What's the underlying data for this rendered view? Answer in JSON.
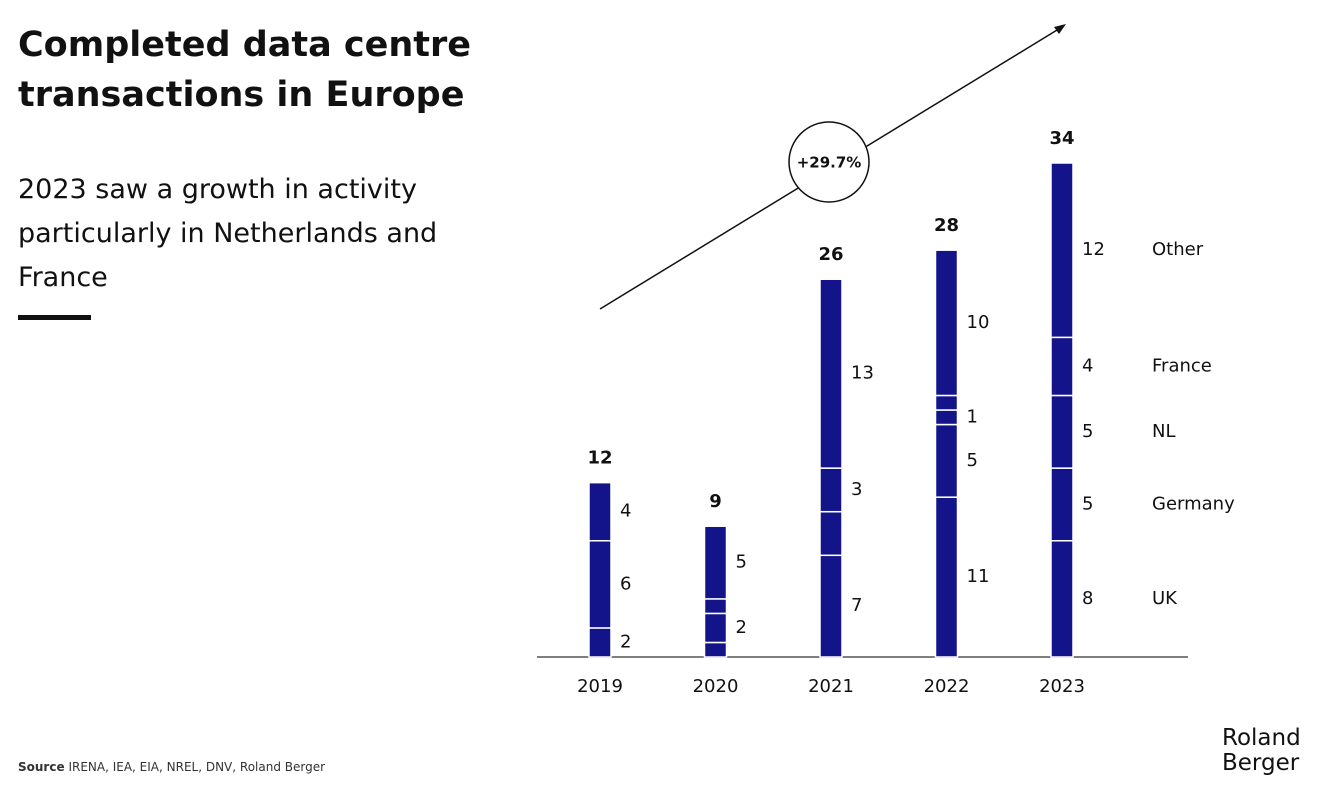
{
  "chart_data": {
    "type": "stacked_bar",
    "title": "Completed data centre transactions in Europe",
    "subtitle": "2023 saw a growth in activity particularly in Netherlands and France",
    "annotation": "+29.7%",
    "source_label": "Source",
    "source": "IRENA, IEA, EIA, NREL, DNV, Roland Berger",
    "brand": "Roland Berger",
    "categories": [
      "2019",
      "2020",
      "2021",
      "2022",
      "2023"
    ],
    "totals": [
      12,
      9,
      26,
      28,
      34
    ],
    "series": [
      {
        "name": "UK",
        "color": "#14148a",
        "values": [
          2,
          1,
          7,
          11,
          8
        ],
        "value_labels": [
          "2",
          null,
          "7",
          "11",
          "8"
        ]
      },
      {
        "name": "Germany",
        "color": "#14148a",
        "values": [
          6,
          2,
          3,
          5,
          5
        ],
        "value_labels": [
          "6",
          "2",
          null,
          "5",
          "5"
        ]
      },
      {
        "name": "NL",
        "color": "#14148a",
        "values": [
          null,
          1,
          3,
          1,
          5
        ],
        "value_labels": [
          null,
          null,
          "3",
          "1",
          "5"
        ]
      },
      {
        "name": "France",
        "color": "#14148a",
        "values": [
          null,
          null,
          null,
          1,
          4
        ],
        "value_labels": [
          null,
          null,
          null,
          null,
          "4"
        ]
      },
      {
        "name": "Other",
        "color": "#14148a",
        "values": [
          4,
          5,
          13,
          10,
          12
        ],
        "value_labels": [
          "4",
          "5",
          "13",
          "10",
          "12"
        ]
      }
    ],
    "ylim": [
      0,
      34
    ]
  }
}
